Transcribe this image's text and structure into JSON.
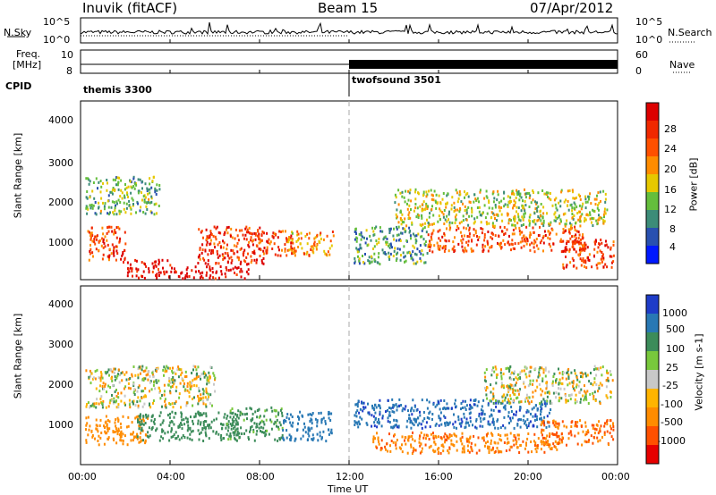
{
  "header": {
    "station": "Inuvik (fitACF)",
    "beam": "Beam 15",
    "date": "07/Apr/2012"
  },
  "noise_panel": {
    "left_label": "N.Sky",
    "right_label": "N.Search",
    "left_ticks": [
      "10^5",
      "10^0"
    ],
    "right_ticks": [
      "10^5",
      "10^0"
    ]
  },
  "freq_panel": {
    "label_line1": "Freq.",
    "label_line2": "[MHz]",
    "left_ticks": [
      "10",
      "8"
    ],
    "right_ticks": [
      "60",
      "0"
    ],
    "right_label": "Nave"
  },
  "cpid_panel": {
    "label": "CPID",
    "modes": [
      {
        "name": "themis 3300",
        "start_hour": 0
      },
      {
        "name": "twofsound 3501",
        "start_hour": 12
      }
    ]
  },
  "power_panel": {
    "ylabel": "Slant Range [km]",
    "yticks": [
      "4000",
      "3000",
      "2000",
      "1000"
    ],
    "colorbar_label": "Power [dB]",
    "colorbar_ticks": [
      "28",
      "24",
      "20",
      "16",
      "12",
      "8",
      "4"
    ],
    "colors": [
      "#0018ff",
      "#2850b0",
      "#3c8c78",
      "#64be3c",
      "#e6c800",
      "#ff8c00",
      "#ff5000",
      "#f02800",
      "#dc0000"
    ]
  },
  "velocity_panel": {
    "ylabel": "Slant Range [km]",
    "yticks": [
      "4000",
      "3000",
      "2000",
      "1000"
    ],
    "colorbar_label": "Velocity [m s-1]",
    "colorbar_ticks": [
      "1000",
      "500",
      "100",
      "25",
      "-25",
      "-100",
      "-500",
      "-1000"
    ],
    "colors": [
      "#1e3cc8",
      "#2878b4",
      "#3c8c5a",
      "#78c83c",
      "#c8c8c8",
      "#ffb400",
      "#ff8c00",
      "#ff5000",
      "#e60000"
    ]
  },
  "xaxis": {
    "label": "Time UT",
    "ticks": [
      "00:00",
      "04:00",
      "08:00",
      "12:00",
      "16:00",
      "20:00",
      "00:00"
    ]
  },
  "chart_data": [
    {
      "type": "heatmap",
      "title": "Power",
      "x_range_hours": [
        0,
        24
      ],
      "y_range_km": [
        200,
        4500
      ],
      "regions": [
        {
          "t": [
            0.3,
            2.0
          ],
          "r": [
            650,
            1500
          ],
          "level": 25
        },
        {
          "t": [
            2.0,
            4.0
          ],
          "r": [
            250,
            700
          ],
          "level": 30
        },
        {
          "t": [
            4.0,
            7.5
          ],
          "r": [
            250,
            550
          ],
          "level": 30
        },
        {
          "t": [
            5.2,
            8.2
          ],
          "r": [
            600,
            1500
          ],
          "level": 26
        },
        {
          "t": [
            7.8,
            9.5
          ],
          "r": [
            800,
            1400
          ],
          "level": 25
        },
        {
          "t": [
            9.2,
            11.3
          ],
          "r": [
            800,
            1400
          ],
          "level": 20
        },
        {
          "t": [
            0.2,
            3.5
          ],
          "r": [
            1800,
            2700
          ],
          "level": 12
        },
        {
          "t": [
            12.2,
            15.5
          ],
          "r": [
            600,
            1500
          ],
          "level": 10
        },
        {
          "t": [
            15.5,
            22.5
          ],
          "r": [
            900,
            1500
          ],
          "level": 24
        },
        {
          "t": [
            14.0,
            23.5
          ],
          "r": [
            1500,
            2400
          ],
          "level": 15
        },
        {
          "t": [
            21.5,
            23.8
          ],
          "r": [
            500,
            1200
          ],
          "level": 26
        }
      ]
    },
    {
      "type": "heatmap",
      "title": "Velocity",
      "x_range_hours": [
        0,
        24
      ],
      "y_range_km": [
        200,
        4500
      ],
      "regions": [
        {
          "t": [
            0.2,
            3.0
          ],
          "r": [
            700,
            1400
          ],
          "level": -300
        },
        {
          "t": [
            2.5,
            7.0
          ],
          "r": [
            800,
            1500
          ],
          "level": 300
        },
        {
          "t": [
            6.5,
            9.0
          ],
          "r": [
            800,
            1600
          ],
          "level": 200
        },
        {
          "t": [
            9.0,
            11.2
          ],
          "r": [
            800,
            1500
          ],
          "level": 800
        },
        {
          "t": [
            0.2,
            6.0
          ],
          "r": [
            1600,
            2600
          ],
          "level": 0
        },
        {
          "t": [
            12.2,
            21.0
          ],
          "r": [
            1100,
            1800
          ],
          "level": 900
        },
        {
          "t": [
            13.0,
            21.5
          ],
          "r": [
            500,
            1000
          ],
          "level": -400
        },
        {
          "t": [
            20.5,
            23.8
          ],
          "r": [
            700,
            1300
          ],
          "level": -500
        },
        {
          "t": [
            18.0,
            23.8
          ],
          "r": [
            1700,
            2600
          ],
          "level": 0
        }
      ]
    }
  ]
}
